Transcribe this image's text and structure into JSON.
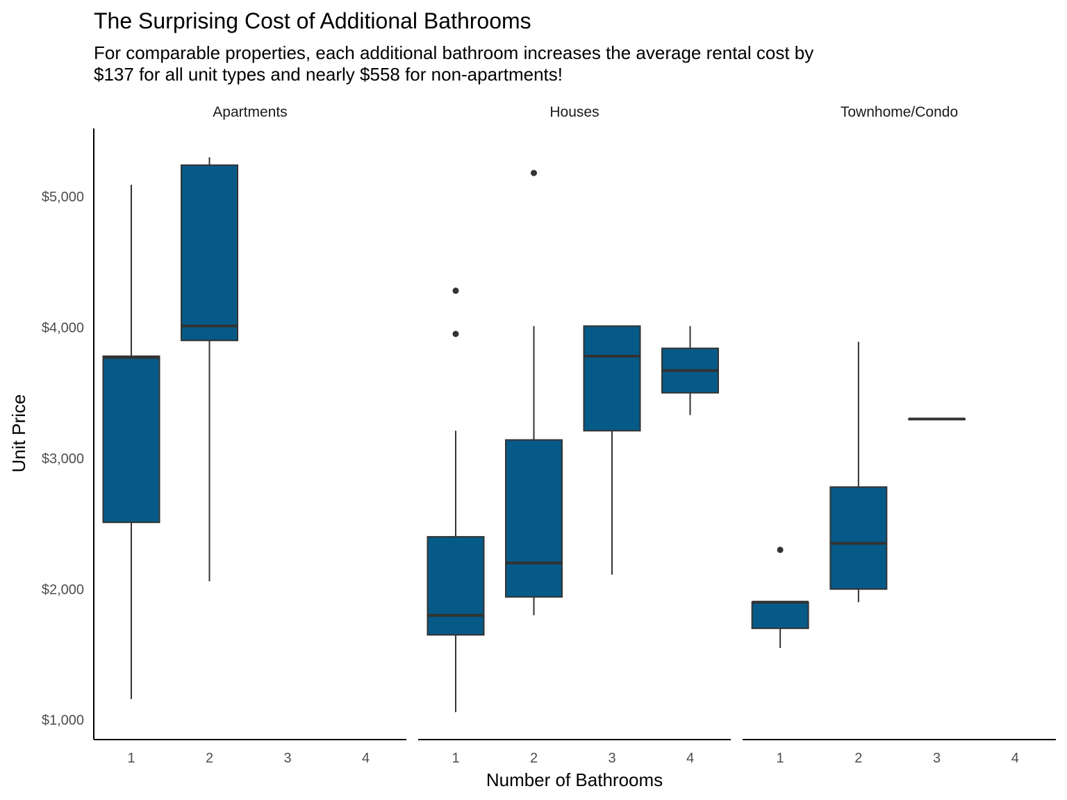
{
  "chart_data": {
    "type": "boxplot",
    "title": "The Surprising Cost of Additional Bathrooms",
    "subtitle_lines": [
      "For comparable properties, each additional bathroom increases the average rental cost by",
      "$137 for all unit types and nearly $558 for non-apartments!"
    ],
    "xlabel": "Number of Bathrooms",
    "ylabel": "Unit Price",
    "categories": [
      "1",
      "2",
      "3",
      "4"
    ],
    "y_ticks": [
      1000,
      2000,
      3000,
      4000,
      5000
    ],
    "y_tick_labels": [
      "$1,000",
      "$2,000",
      "$3,000",
      "$4,000",
      "$5,000"
    ],
    "ylim": [
      850,
      5520
    ],
    "grid": false,
    "colors": {
      "box_fill": "#065a87",
      "line": "#333333",
      "axis": "#000000"
    },
    "panels": [
      {
        "name": "Apartments",
        "boxes": [
          {
            "x": "1",
            "whisker_low": 1160,
            "q1": 2510,
            "median": 3770,
            "q3": 3780,
            "whisker_high": 5090,
            "outliers": []
          },
          {
            "x": "2",
            "whisker_low": 2060,
            "q1": 3900,
            "median": 4010,
            "q3": 5240,
            "whisker_high": 5300,
            "outliers": []
          }
        ]
      },
      {
        "name": "Houses",
        "boxes": [
          {
            "x": "1",
            "whisker_low": 1060,
            "q1": 1650,
            "median": 1800,
            "q3": 2400,
            "whisker_high": 3210,
            "outliers": [
              3950,
              4280
            ]
          },
          {
            "x": "2",
            "whisker_low": 1800,
            "q1": 1940,
            "median": 2200,
            "q3": 3140,
            "whisker_high": 4010,
            "outliers": [
              5180
            ]
          },
          {
            "x": "3",
            "whisker_low": 2110,
            "q1": 3210,
            "median": 3780,
            "q3": 4010,
            "whisker_high": 4010,
            "outliers": []
          },
          {
            "x": "4",
            "whisker_low": 3330,
            "q1": 3500,
            "median": 3670,
            "q3": 3840,
            "whisker_high": 4010,
            "outliers": []
          }
        ]
      },
      {
        "name": "Townhome/Condo",
        "boxes": [
          {
            "x": "1",
            "whisker_low": 1550,
            "q1": 1700,
            "median": 1900,
            "q3": 1900,
            "whisker_high": 1900,
            "outliers": [
              2300
            ]
          },
          {
            "x": "2",
            "whisker_low": 1900,
            "q1": 2000,
            "median": 2350,
            "q3": 2780,
            "whisker_high": 3890,
            "outliers": []
          },
          {
            "x": "3",
            "whisker_low": 3300,
            "q1": 3300,
            "median": 3300,
            "q3": 3300,
            "whisker_high": 3300,
            "outliers": []
          }
        ]
      }
    ]
  }
}
